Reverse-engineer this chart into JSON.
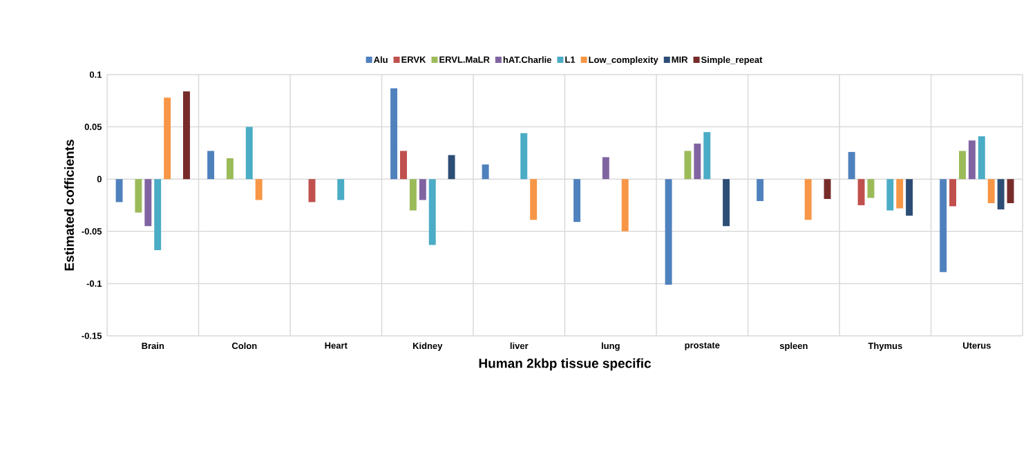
{
  "chart_data": {
    "type": "bar",
    "xlabel": "Human 2kbp tissue specific",
    "ylabel": "Estimated cofficients",
    "categories": [
      "Brain",
      "Colon",
      "Heart",
      "Kidney",
      "liver",
      "lung",
      "prostate",
      "spleen",
      "Thymus",
      "Uterus"
    ],
    "series": [
      {
        "name": "Alu",
        "color": "#4f81bd",
        "values": [
          -0.022,
          0.027,
          null,
          0.087,
          0.014,
          -0.041,
          -0.101,
          -0.021,
          0.026,
          -0.089
        ]
      },
      {
        "name": "ERVK",
        "color": "#c0504d",
        "values": [
          null,
          null,
          -0.022,
          0.027,
          null,
          null,
          null,
          null,
          -0.025,
          -0.026
        ]
      },
      {
        "name": "ERVL.MaLR",
        "color": "#9bbb59",
        "values": [
          -0.032,
          0.02,
          null,
          -0.03,
          null,
          null,
          0.027,
          null,
          -0.018,
          0.027
        ]
      },
      {
        "name": "hAT.Charlie",
        "color": "#8064a2",
        "values": [
          -0.045,
          null,
          null,
          -0.02,
          null,
          0.021,
          0.034,
          null,
          null,
          0.037
        ]
      },
      {
        "name": "L1",
        "color": "#4bacc6",
        "values": [
          -0.068,
          0.05,
          -0.02,
          -0.063,
          0.044,
          null,
          0.045,
          null,
          -0.03,
          0.041
        ]
      },
      {
        "name": "Low_complexity",
        "color": "#f79646",
        "values": [
          0.078,
          -0.02,
          null,
          null,
          -0.039,
          -0.05,
          null,
          -0.039,
          -0.028,
          -0.023
        ]
      },
      {
        "name": "MIR",
        "color": "#2c4d75",
        "values": [
          null,
          null,
          null,
          0.023,
          null,
          null,
          -0.045,
          null,
          -0.035,
          -0.029
        ]
      },
      {
        "name": "Simple_repeat",
        "color": "#772c2a",
        "values": [
          0.084,
          null,
          null,
          null,
          null,
          null,
          null,
          -0.019,
          null,
          -0.023
        ]
      }
    ],
    "ylim": [
      -0.15,
      0.1
    ],
    "yticks": [
      -0.15,
      -0.1,
      -0.05,
      0,
      0.05,
      0.1
    ],
    "grid": true,
    "legend": "top"
  }
}
